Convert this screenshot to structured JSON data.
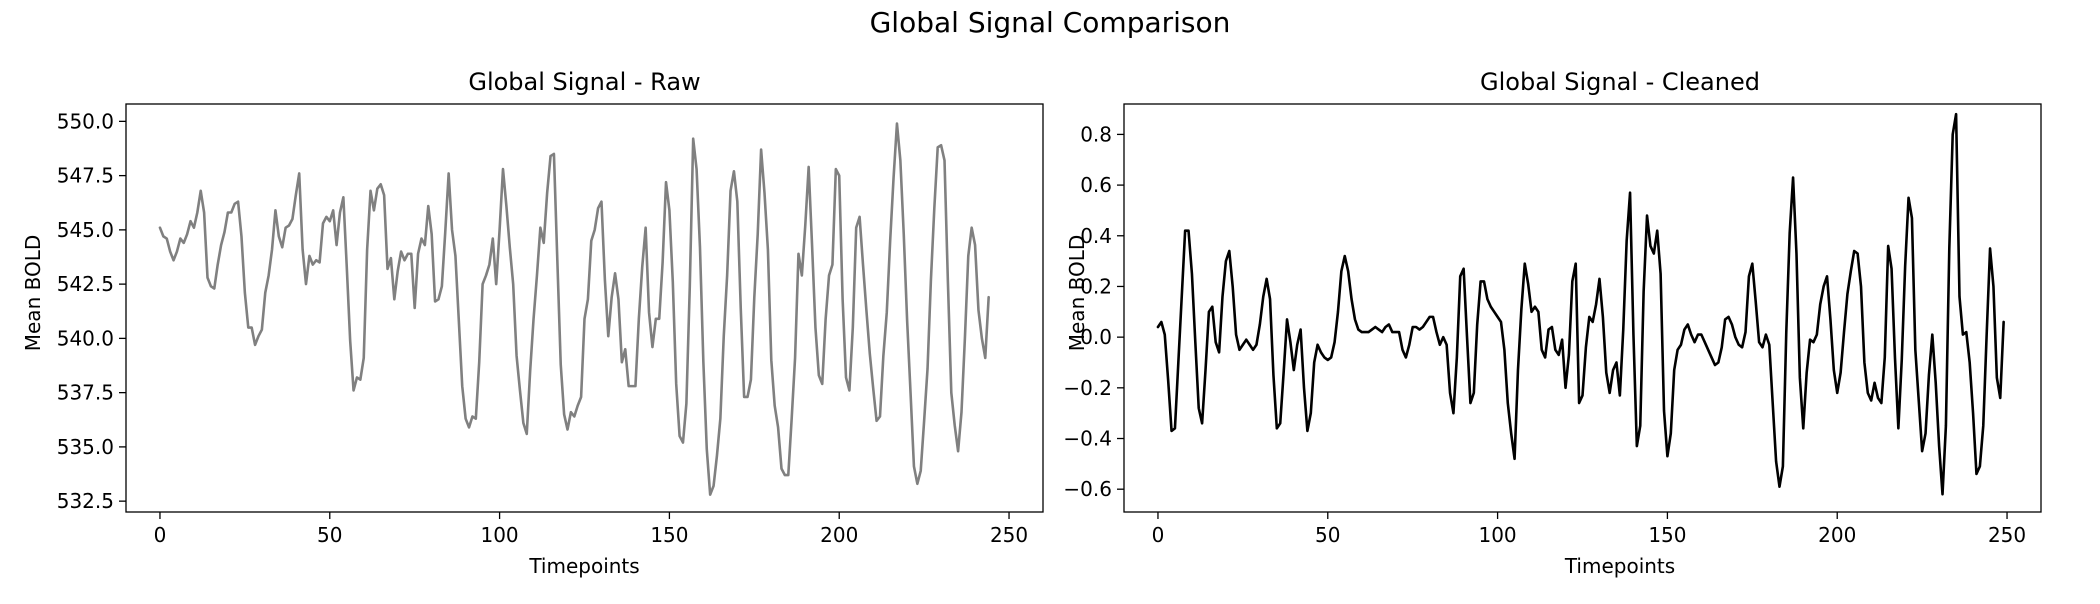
{
  "figure": {
    "title": "Global Signal Comparison"
  },
  "chart_data": [
    {
      "type": "line",
      "title": "Global Signal - Raw",
      "xlabel": "Timepoints",
      "ylabel": "Mean BOLD",
      "xlim": [
        -10,
        260
      ],
      "ylim": [
        532,
        550.8
      ],
      "xticks": [
        0,
        50,
        100,
        150,
        200,
        250
      ],
      "yticks": [
        532.5,
        535.0,
        537.5,
        540.0,
        542.5,
        545.0,
        547.5,
        550.0
      ],
      "ytick_labels": [
        "532.5",
        "535.0",
        "537.5",
        "540.0",
        "542.5",
        "545.0",
        "547.5",
        "550.0"
      ],
      "grid": false,
      "line_color": "#808080",
      "series": [
        {
          "x_start": 0,
          "x_step": 1,
          "values": [
            545.1,
            544.7,
            544.6,
            544.0,
            543.6,
            544.0,
            544.6,
            544.4,
            544.8,
            545.4,
            545.1,
            545.8,
            546.8,
            545.8,
            542.8,
            542.4,
            542.3,
            543.4,
            544.3,
            544.9,
            545.8,
            545.8,
            546.2,
            546.3,
            544.7,
            542.1,
            540.5,
            540.5,
            539.7,
            540.1,
            540.4,
            542.1,
            542.9,
            544.1,
            545.9,
            544.7,
            544.2,
            545.1,
            545.2,
            545.5,
            546.6,
            547.6,
            544.1,
            542.5,
            543.8,
            543.4,
            543.6,
            543.5,
            545.3,
            545.6,
            545.4,
            545.9,
            544.3,
            545.8,
            546.5,
            543.3,
            539.9,
            537.6,
            538.2,
            538.1,
            539.1,
            544.1,
            546.8,
            545.9,
            546.9,
            547.1,
            546.6,
            543.2,
            543.7,
            541.8,
            543.1,
            544.0,
            543.6,
            543.9,
            543.9,
            541.4,
            543.9,
            544.6,
            544.3,
            546.1,
            544.8,
            541.7,
            541.8,
            542.4,
            544.9,
            547.6,
            545.0,
            543.8,
            540.8,
            537.8,
            536.3,
            535.9,
            536.4,
            536.3,
            538.9,
            542.5,
            542.9,
            543.4,
            544.6,
            542.5,
            545.0,
            547.8,
            546.1,
            544.2,
            542.5,
            539.2,
            537.6,
            536.1,
            535.6,
            538.5,
            540.9,
            542.9,
            545.1,
            544.4,
            546.7,
            548.4,
            548.5,
            543.6,
            538.8,
            536.5,
            535.8,
            536.6,
            536.4,
            536.9,
            537.3,
            540.9,
            541.8,
            544.5,
            545.0,
            546.0,
            546.3,
            542.7,
            540.1,
            541.9,
            543.0,
            541.8,
            538.9,
            539.5,
            537.8,
            537.8,
            537.8,
            540.9,
            543.3,
            545.1,
            541.2,
            539.6,
            540.9,
            540.9,
            543.5,
            547.2,
            545.9,
            542.6,
            537.9,
            535.5,
            535.2,
            537.0,
            542.4,
            549.2,
            547.8,
            544.2,
            538.9,
            534.9,
            532.8,
            533.2,
            534.6,
            536.3,
            540.1,
            542.9,
            546.8,
            547.7,
            546.3,
            541.4,
            537.3,
            537.3,
            538.1,
            541.9,
            544.8,
            548.7,
            546.7,
            544.1,
            539.0,
            536.9,
            535.9,
            534.0,
            533.7,
            533.7,
            536.3,
            539.1,
            543.9,
            542.9,
            545.2,
            547.9,
            544.3,
            540.5,
            538.3,
            537.9,
            540.9,
            542.9,
            543.4,
            547.8,
            547.5,
            541.8,
            538.2,
            537.6,
            540.5,
            545.1,
            545.6,
            543.4,
            541.3,
            539.3,
            537.7,
            536.2,
            536.4,
            539.2,
            541.2,
            544.5,
            547.4,
            549.9,
            548.2,
            544.8,
            540.8,
            537.5,
            534.1,
            533.3,
            533.9,
            536.2,
            538.6,
            542.7,
            546.0,
            548.8,
            548.9,
            548.2,
            542.6,
            537.5,
            536.0,
            534.8,
            536.6,
            540.0,
            543.8,
            545.1,
            544.3,
            541.3,
            540.0,
            539.1,
            541.9
          ]
        }
      ]
    },
    {
      "type": "line",
      "title": "Global Signal - Cleaned",
      "xlabel": "Timepoints",
      "ylabel": "Mean BOLD",
      "xlim": [
        -10,
        260
      ],
      "ylim": [
        -0.69,
        0.92
      ],
      "xticks": [
        0,
        50,
        100,
        150,
        200,
        250
      ],
      "yticks": [
        -0.6,
        -0.4,
        -0.2,
        0.0,
        0.2,
        0.4,
        0.6,
        0.8
      ],
      "ytick_labels": [
        "−0.6",
        "−0.4",
        "−0.2",
        "0.0",
        "0.2",
        "0.4",
        "0.6",
        "0.8"
      ],
      "grid": false,
      "line_color": "#000000",
      "series": [
        {
          "x_start": 0,
          "x_step": 1,
          "values": [
            0.04,
            0.06,
            0.01,
            -0.17,
            -0.37,
            -0.36,
            -0.1,
            0.16,
            0.42,
            0.42,
            0.25,
            -0.02,
            -0.28,
            -0.34,
            -0.13,
            0.1,
            0.12,
            -0.02,
            -0.06,
            0.16,
            0.3,
            0.34,
            0.2,
            0.01,
            -0.05,
            -0.03,
            -0.01,
            -0.03,
            -0.05,
            -0.03,
            0.05,
            0.16,
            0.23,
            0.15,
            -0.15,
            -0.36,
            -0.34,
            -0.14,
            0.07,
            -0.02,
            -0.13,
            -0.03,
            0.03,
            -0.2,
            -0.37,
            -0.3,
            -0.1,
            -0.03,
            -0.06,
            -0.08,
            -0.09,
            -0.08,
            -0.02,
            0.1,
            0.26,
            0.32,
            0.26,
            0.15,
            0.07,
            0.03,
            0.02,
            0.02,
            0.02,
            0.03,
            0.04,
            0.03,
            0.02,
            0.04,
            0.05,
            0.02,
            0.02,
            0.02,
            -0.05,
            -0.08,
            -0.03,
            0.04,
            0.04,
            0.03,
            0.04,
            0.06,
            0.08,
            0.08,
            0.02,
            -0.03,
            0.0,
            -0.03,
            -0.22,
            -0.3,
            -0.08,
            0.24,
            0.27,
            0.0,
            -0.26,
            -0.22,
            0.05,
            0.22,
            0.22,
            0.15,
            0.12,
            0.1,
            0.08,
            0.06,
            -0.05,
            -0.26,
            -0.38,
            -0.48,
            -0.13,
            0.11,
            0.29,
            0.21,
            0.1,
            0.12,
            0.1,
            -0.05,
            -0.08,
            0.03,
            0.04,
            -0.05,
            -0.07,
            -0.01,
            -0.2,
            -0.07,
            0.22,
            0.29,
            -0.26,
            -0.23,
            -0.04,
            0.08,
            0.06,
            0.13,
            0.23,
            0.08,
            -0.14,
            -0.22,
            -0.13,
            -0.1,
            -0.23,
            0.03,
            0.38,
            0.57,
            0.01,
            -0.43,
            -0.35,
            0.18,
            0.48,
            0.36,
            0.33,
            0.42,
            0.25,
            -0.29,
            -0.47,
            -0.38,
            -0.13,
            -0.05,
            -0.03,
            0.03,
            0.05,
            0.01,
            -0.02,
            0.01,
            0.01,
            -0.02,
            -0.05,
            -0.08,
            -0.11,
            -0.1,
            -0.04,
            0.07,
            0.08,
            0.05,
            0.0,
            -0.03,
            -0.04,
            0.02,
            0.24,
            0.29,
            0.14,
            -0.02,
            -0.04,
            0.01,
            -0.03,
            -0.26,
            -0.49,
            -0.59,
            -0.51,
            0.02,
            0.41,
            0.63,
            0.33,
            -0.16,
            -0.36,
            -0.14,
            -0.01,
            -0.02,
            0.01,
            0.13,
            0.2,
            0.24,
            0.07,
            -0.13,
            -0.22,
            -0.14,
            0.02,
            0.17,
            0.26,
            0.34,
            0.33,
            0.2,
            -0.1,
            -0.22,
            -0.25,
            -0.18,
            -0.24,
            -0.26,
            -0.08,
            0.36,
            0.27,
            -0.08,
            -0.36,
            -0.09,
            0.28,
            0.55,
            0.47,
            -0.05,
            -0.25,
            -0.45,
            -0.38,
            -0.15,
            0.01,
            -0.18,
            -0.43,
            -0.62,
            -0.35,
            0.35,
            0.8,
            0.88,
            0.16,
            0.01,
            0.02,
            -0.1,
            -0.3,
            -0.54,
            -0.51,
            -0.35,
            0.01,
            0.35,
            0.2,
            -0.16,
            -0.24,
            0.06
          ]
        }
      ]
    }
  ]
}
